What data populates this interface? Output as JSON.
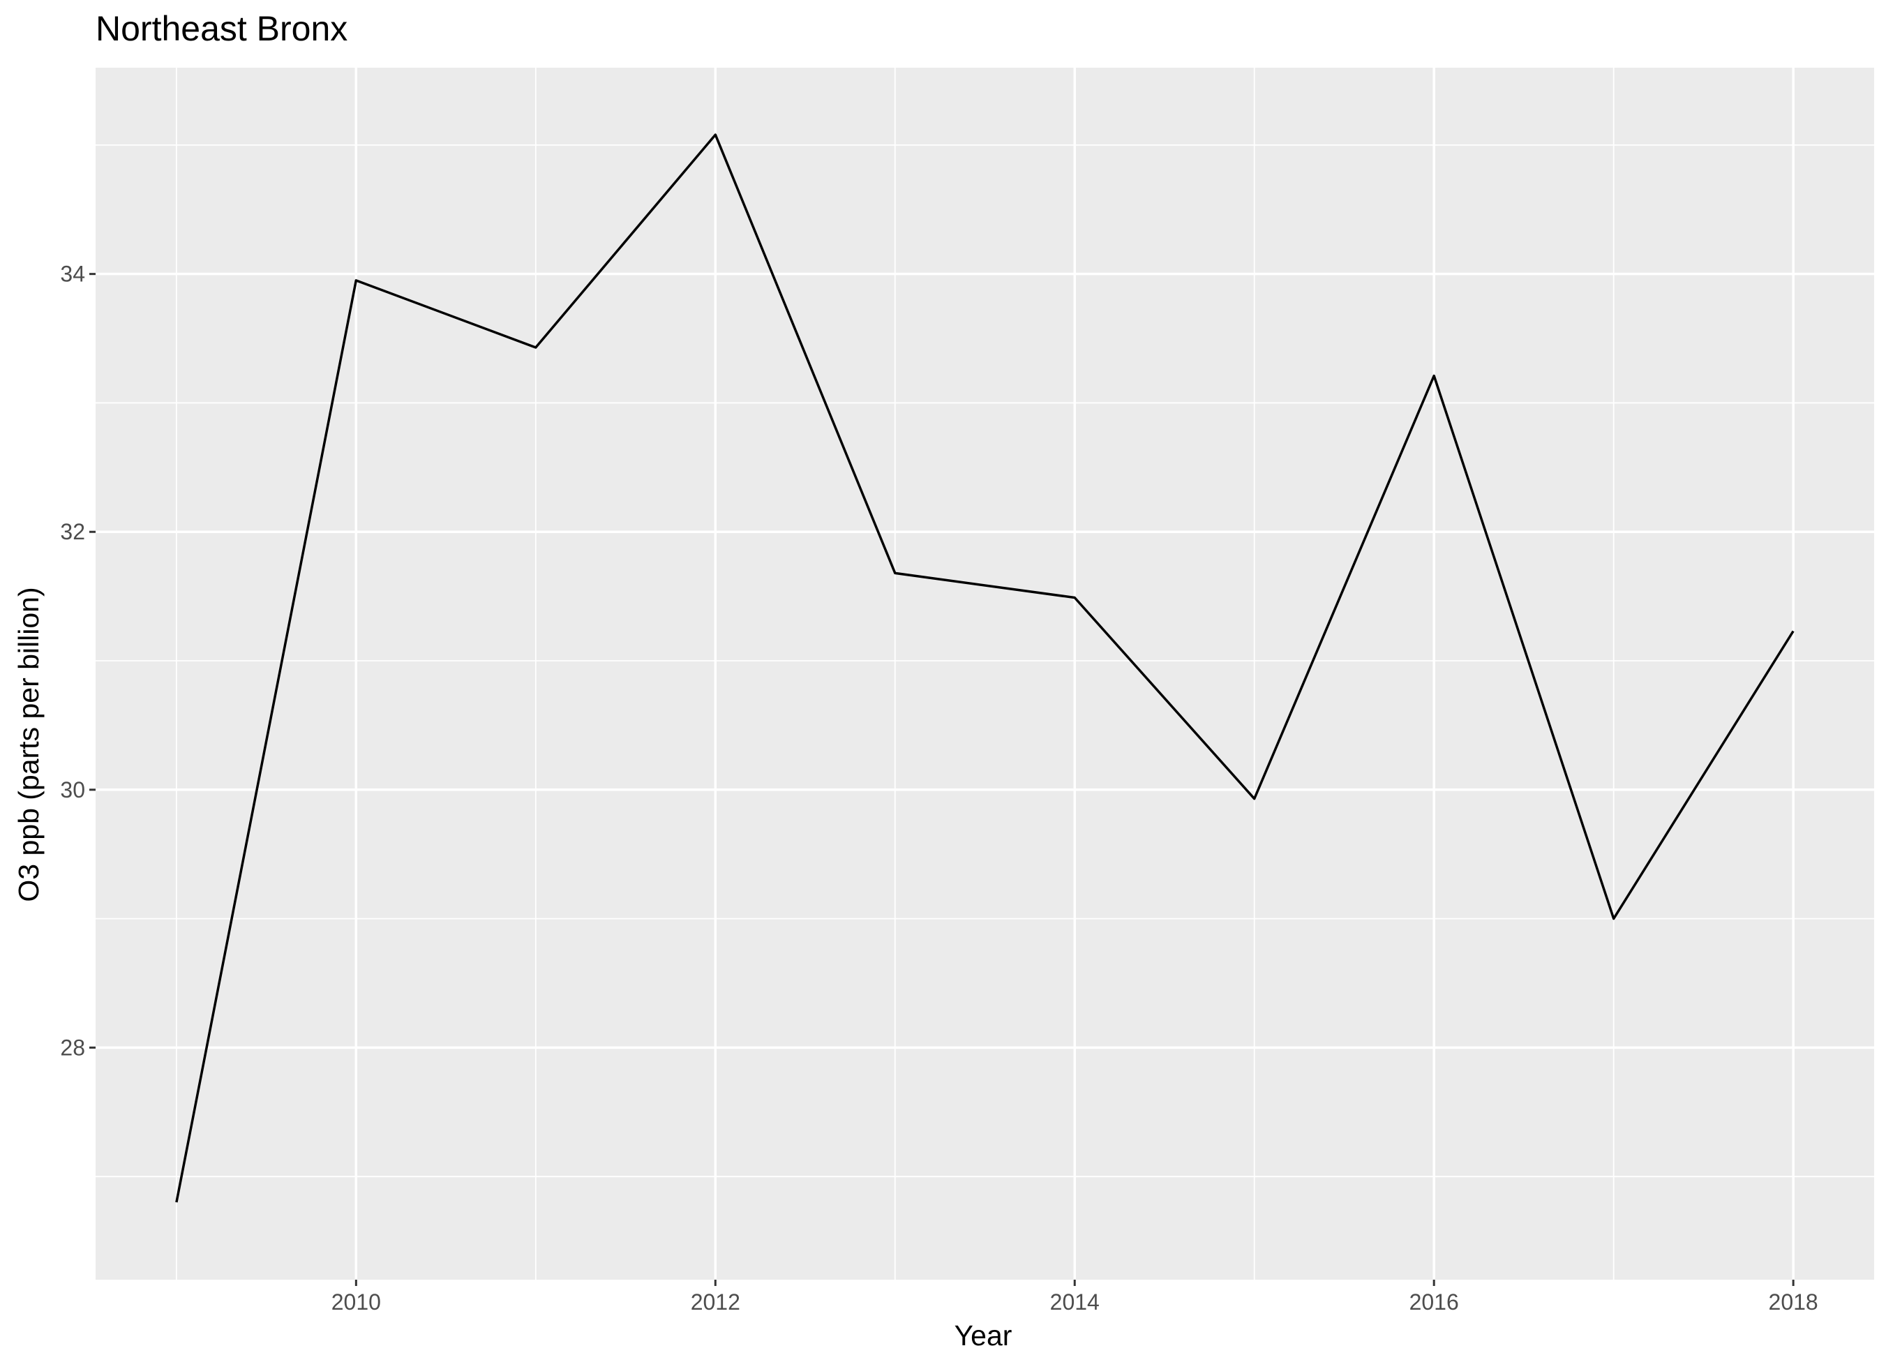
{
  "chart_data": {
    "type": "line",
    "title": "Northeast Bronx",
    "xlabel": "Year",
    "ylabel": "O3 ppb (parts per billion)",
    "x": [
      2009,
      2010,
      2011,
      2012,
      2013,
      2014,
      2015,
      2016,
      2017,
      2018
    ],
    "series": [
      {
        "values": [
          26.8,
          33.95,
          33.43,
          35.08,
          31.68,
          31.49,
          29.93,
          33.21,
          29.0,
          31.23
        ]
      }
    ],
    "xlim": [
      2008.55,
      2018.45
    ],
    "ylim": [
      26.2,
      35.6
    ],
    "x_ticks": [
      2010,
      2012,
      2014,
      2016,
      2018
    ],
    "y_ticks": [
      28,
      30,
      32,
      34
    ],
    "x_minor": [
      2009,
      2011,
      2013,
      2015,
      2017
    ],
    "y_minor": [
      27,
      29,
      31,
      33,
      35
    ],
    "grid": true,
    "colors": {
      "panel": "#ebebeb",
      "grid": "#ffffff",
      "line": "#000000",
      "tick": "#333333"
    }
  }
}
